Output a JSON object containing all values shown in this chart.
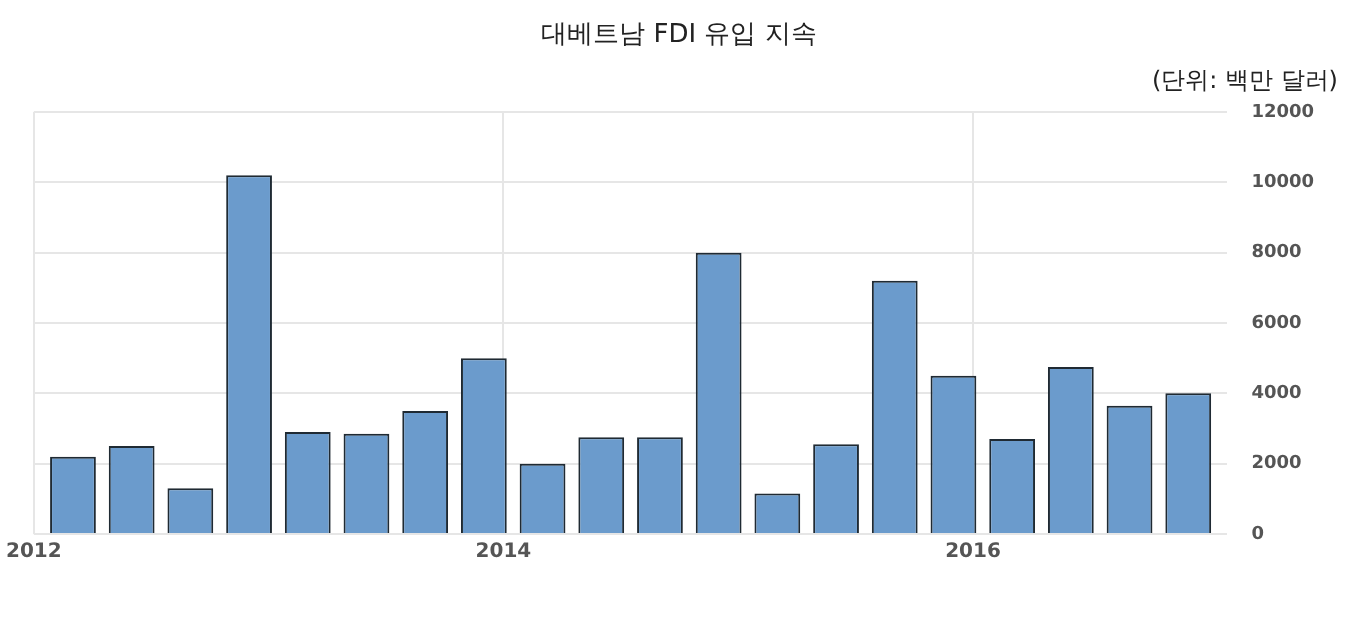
{
  "chart_data": {
    "type": "bar",
    "title": "대베트남 FDI 유입 지속",
    "subtitle": "(단위: 백만 달러)",
    "x": [
      "2012-03",
      "2012-06",
      "2012-09",
      "2012-12",
      "2013-03",
      "2013-06",
      "2013-09",
      "2013-12",
      "2014-03",
      "2014-06",
      "2014-09",
      "2014-12",
      "2015-03",
      "2015-06",
      "2015-09",
      "2015-12",
      "2016-03",
      "2016-06",
      "2016-09",
      "2016-12"
    ],
    "values": [
      2200,
      2500,
      1300,
      10200,
      2900,
      2850,
      3500,
      5000,
      2000,
      2750,
      2750,
      8000,
      1150,
      2550,
      7200,
      4500,
      2700,
      4750,
      3650,
      4000
    ],
    "color": "#6b9bcc",
    "xlim": [
      "2012",
      "2017-02"
    ],
    "xticks": [
      "2012",
      "2014",
      "2016"
    ],
    "ylim": [
      0,
      12000
    ],
    "yticks": [
      0,
      2000,
      4000,
      6000,
      8000,
      10000,
      12000
    ],
    "grid": true,
    "legend": false
  }
}
